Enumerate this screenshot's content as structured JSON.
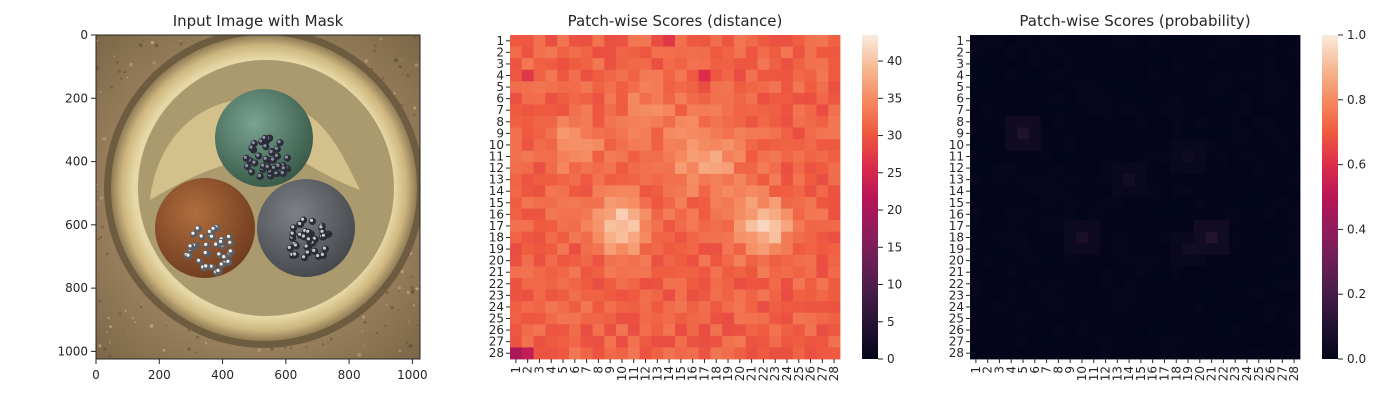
{
  "chart_data": [
    {
      "type": "image",
      "title": "Input Image with Mask",
      "x_ticks": [
        0,
        200,
        400,
        600,
        800,
        1000
      ],
      "y_ticks": [
        0,
        200,
        400,
        600,
        800,
        1000
      ],
      "xlim": [
        0,
        1024
      ],
      "ylim": [
        1024,
        0
      ],
      "image_content": {
        "background": "sandy brown textured surface",
        "ring_color": "#d8c48f",
        "objects": [
          {
            "name": "top-green-cable",
            "color": "#4f7a66"
          },
          {
            "name": "left-brown-cable",
            "color": "#8a4f2a"
          },
          {
            "name": "right-gray-cable",
            "color": "#5e6266"
          }
        ]
      }
    },
    {
      "type": "heatmap",
      "title": "Patch-wise Scores (distance)",
      "rows": 28,
      "cols": 28,
      "row_labels": [
        "1",
        "2",
        "3",
        "4",
        "5",
        "6",
        "7",
        "8",
        "9",
        "10",
        "11",
        "12",
        "13",
        "14",
        "15",
        "16",
        "17",
        "18",
        "19",
        "20",
        "21",
        "22",
        "23",
        "24",
        "25",
        "26",
        "27",
        "28"
      ],
      "col_labels": [
        "1",
        "2",
        "3",
        "4",
        "5",
        "6",
        "7",
        "8",
        "9",
        "10",
        "11",
        "12",
        "13",
        "14",
        "15",
        "16",
        "17",
        "18",
        "19",
        "20",
        "21",
        "22",
        "23",
        "24",
        "25",
        "26",
        "27",
        "28"
      ],
      "colorbar": {
        "range": [
          0,
          43.5
        ],
        "ticks": [
          0,
          5,
          10,
          15,
          20,
          25,
          30,
          35,
          40
        ]
      },
      "colormap": "rocket",
      "baseline": 31,
      "hotspots": [
        {
          "row": 17,
          "col": 10,
          "amp": 10,
          "sigma": 1.6
        },
        {
          "row": 17,
          "col": 22,
          "amp": 10,
          "sigma": 1.6
        },
        {
          "row": 10,
          "col": 6,
          "amp": 5,
          "sigma": 1.5
        },
        {
          "row": 11,
          "col": 17,
          "amp": 6,
          "sigma": 2.2
        },
        {
          "row": 7,
          "col": 12,
          "amp": 3,
          "sigma": 1.5
        }
      ],
      "cold_spots": [
        {
          "row": 28,
          "col": 1,
          "value": 20
        },
        {
          "row": 28,
          "col": 2,
          "value": 23
        },
        {
          "row": 1,
          "col": 14,
          "value": 27
        },
        {
          "row": 4,
          "col": 2,
          "value": 27
        },
        {
          "row": 4,
          "col": 17,
          "value": 26
        }
      ]
    },
    {
      "type": "heatmap",
      "title": "Patch-wise Scores (probability)",
      "rows": 28,
      "cols": 28,
      "row_labels": [
        "1",
        "2",
        "3",
        "4",
        "5",
        "6",
        "7",
        "8",
        "9",
        "10",
        "11",
        "12",
        "13",
        "14",
        "15",
        "16",
        "17",
        "18",
        "19",
        "20",
        "21",
        "22",
        "23",
        "24",
        "25",
        "26",
        "27",
        "28"
      ],
      "col_labels": [
        "1",
        "2",
        "3",
        "4",
        "5",
        "6",
        "7",
        "8",
        "9",
        "10",
        "11",
        "12",
        "13",
        "14",
        "15",
        "16",
        "17",
        "18",
        "19",
        "20",
        "21",
        "22",
        "23",
        "24",
        "25",
        "26",
        "27",
        "28"
      ],
      "colorbar": {
        "range": [
          0.0,
          1.0
        ],
        "ticks": [
          "0.0",
          "0.2",
          "0.4",
          "0.6",
          "0.8",
          "1.0"
        ]
      },
      "colormap": "rocket",
      "baseline": 0.01,
      "hotspots": [
        {
          "row": 9,
          "col": 5,
          "value": 0.09
        },
        {
          "row": 18,
          "col": 21,
          "value": 0.1
        },
        {
          "row": 18,
          "col": 10,
          "value": 0.07
        },
        {
          "row": 13,
          "col": 14,
          "value": 0.05
        },
        {
          "row": 19,
          "col": 19,
          "value": 0.05
        },
        {
          "row": 11,
          "col": 19,
          "value": 0.04
        }
      ]
    }
  ]
}
